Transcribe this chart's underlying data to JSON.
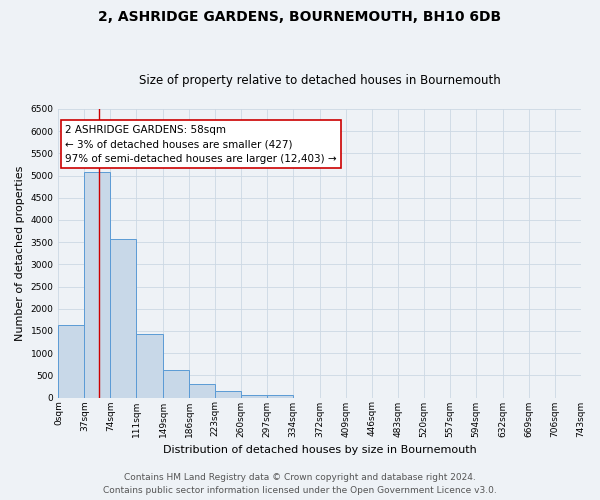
{
  "title": "2, ASHRIDGE GARDENS, BOURNEMOUTH, BH10 6DB",
  "subtitle": "Size of property relative to detached houses in Bournemouth",
  "xlabel": "Distribution of detached houses by size in Bournemouth",
  "ylabel": "Number of detached properties",
  "bar_edges": [
    0,
    37,
    74,
    111,
    149,
    186,
    223,
    260,
    297,
    334,
    372,
    409,
    446,
    483,
    520,
    557,
    594,
    632,
    669,
    706,
    743
  ],
  "bar_heights": [
    1640,
    5080,
    3580,
    1420,
    610,
    300,
    150,
    60,
    50,
    0,
    0,
    0,
    0,
    0,
    0,
    0,
    0,
    0,
    0,
    0
  ],
  "bar_color": "#c8d8e8",
  "bar_edgecolor": "#5b9bd5",
  "property_line_x": 58,
  "property_line_color": "#cc0000",
  "annotation_line1": "2 ASHRIDGE GARDENS: 58sqm",
  "annotation_line2": "← 3% of detached houses are smaller (427)",
  "annotation_line3": "97% of semi-detached houses are larger (12,403) →",
  "annotation_box_color": "#ffffff",
  "annotation_box_edgecolor": "#cc0000",
  "ylim": [
    0,
    6500
  ],
  "yticks": [
    0,
    500,
    1000,
    1500,
    2000,
    2500,
    3000,
    3500,
    4000,
    4500,
    5000,
    5500,
    6000,
    6500
  ],
  "xtick_labels": [
    "0sqm",
    "37sqm",
    "74sqm",
    "111sqm",
    "149sqm",
    "186sqm",
    "223sqm",
    "260sqm",
    "297sqm",
    "334sqm",
    "372sqm",
    "409sqm",
    "446sqm",
    "483sqm",
    "520sqm",
    "557sqm",
    "594sqm",
    "632sqm",
    "669sqm",
    "706sqm",
    "743sqm"
  ],
  "grid_color": "#ccd8e4",
  "background_color": "#eef2f6",
  "footer_text": "Contains HM Land Registry data © Crown copyright and database right 2024.\nContains public sector information licensed under the Open Government Licence v3.0.",
  "title_fontsize": 10,
  "subtitle_fontsize": 8.5,
  "axis_label_fontsize": 8,
  "tick_fontsize": 6.5,
  "annotation_fontsize": 7.5,
  "footer_fontsize": 6.5
}
